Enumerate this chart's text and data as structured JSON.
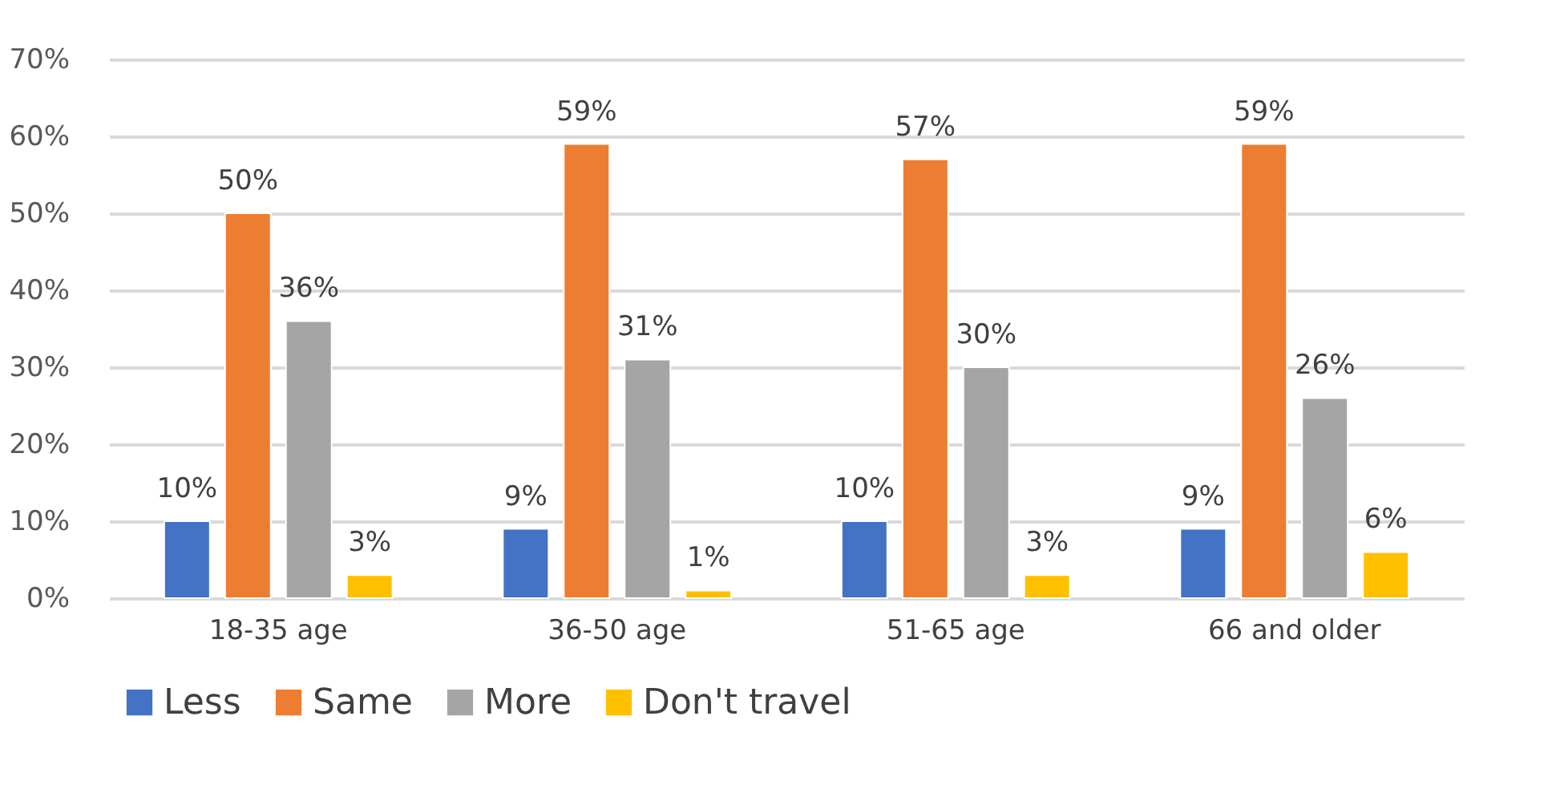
{
  "chart_data": {
    "type": "bar",
    "categories": [
      "18-35 age",
      "36-50 age",
      "51-65 age",
      "66 and older"
    ],
    "series": [
      {
        "name": "Less",
        "color": "#4472c4",
        "values": [
          10,
          9,
          10,
          9
        ],
        "value_labels": [
          "10%",
          "9%",
          "10%",
          "9%"
        ]
      },
      {
        "name": "Same",
        "color": "#ed7d31",
        "values": [
          50,
          59,
          57,
          59
        ],
        "value_labels": [
          "50%",
          "59%",
          "57%",
          "59%"
        ]
      },
      {
        "name": "More",
        "color": "#a5a5a5",
        "values": [
          36,
          31,
          30,
          26
        ],
        "value_labels": [
          "36%",
          "31%",
          "30%",
          "26%"
        ]
      },
      {
        "name": "Don't travel",
        "color": "#ffc000",
        "values": [
          3,
          1,
          3,
          6
        ],
        "value_labels": [
          "3%",
          "1%",
          "3%",
          "6%"
        ]
      }
    ],
    "ylim": [
      0,
      70
    ],
    "yticks": [
      {
        "value": 0,
        "label": "0%"
      },
      {
        "value": 10,
        "label": "10%"
      },
      {
        "value": 20,
        "label": "20%"
      },
      {
        "value": 30,
        "label": "30%"
      },
      {
        "value": 40,
        "label": "40%"
      },
      {
        "value": 50,
        "label": "50%"
      },
      {
        "value": 60,
        "label": "60%"
      },
      {
        "value": 70,
        "label": "70%"
      }
    ],
    "grid": "y",
    "legend": "bottom"
  }
}
